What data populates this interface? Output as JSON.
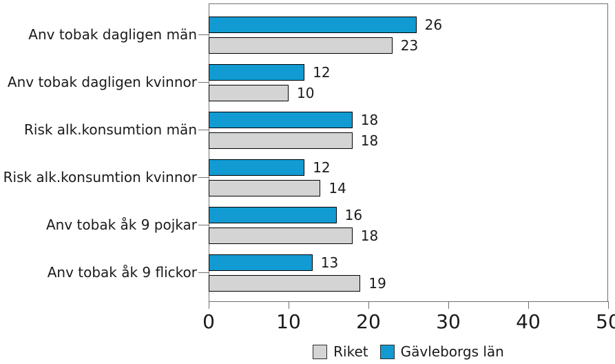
{
  "chart_data": {
    "type": "bar",
    "orientation": "horizontal",
    "title": "",
    "xlabel": "",
    "ylabel": "",
    "categories": [
      "Anv tobak dagligen män",
      "Anv tobak dagligen kvinnor",
      "Risk alk.konsumtion män",
      "Risk alk.konsumtion kvinnor",
      "Anv tobak åk 9 pojkar",
      "Anv tobak åk 9 flickor"
    ],
    "series": [
      {
        "name": "Gävleborgs län",
        "color": "#119BD2",
        "values": [
          26,
          12,
          18,
          12,
          16,
          13
        ]
      },
      {
        "name": "Riket",
        "color": "#D4D4D4",
        "values": [
          23,
          10,
          18,
          14,
          18,
          19
        ]
      }
    ],
    "value_labels_shown": true,
    "xlim": [
      0,
      50
    ],
    "xticks": [
      0,
      10,
      20,
      30,
      40,
      50
    ],
    "grid": false,
    "legend_position": "bottom",
    "legend": [
      {
        "label": "Riket",
        "color": "#D4D4D4"
      },
      {
        "label": "Gävleborgs län",
        "color": "#119BD2"
      }
    ]
  },
  "colors": {
    "bar_border": "#000000",
    "axis": "#6f6f6f",
    "text": "#1a1a1a",
    "background": "#ffffff"
  }
}
